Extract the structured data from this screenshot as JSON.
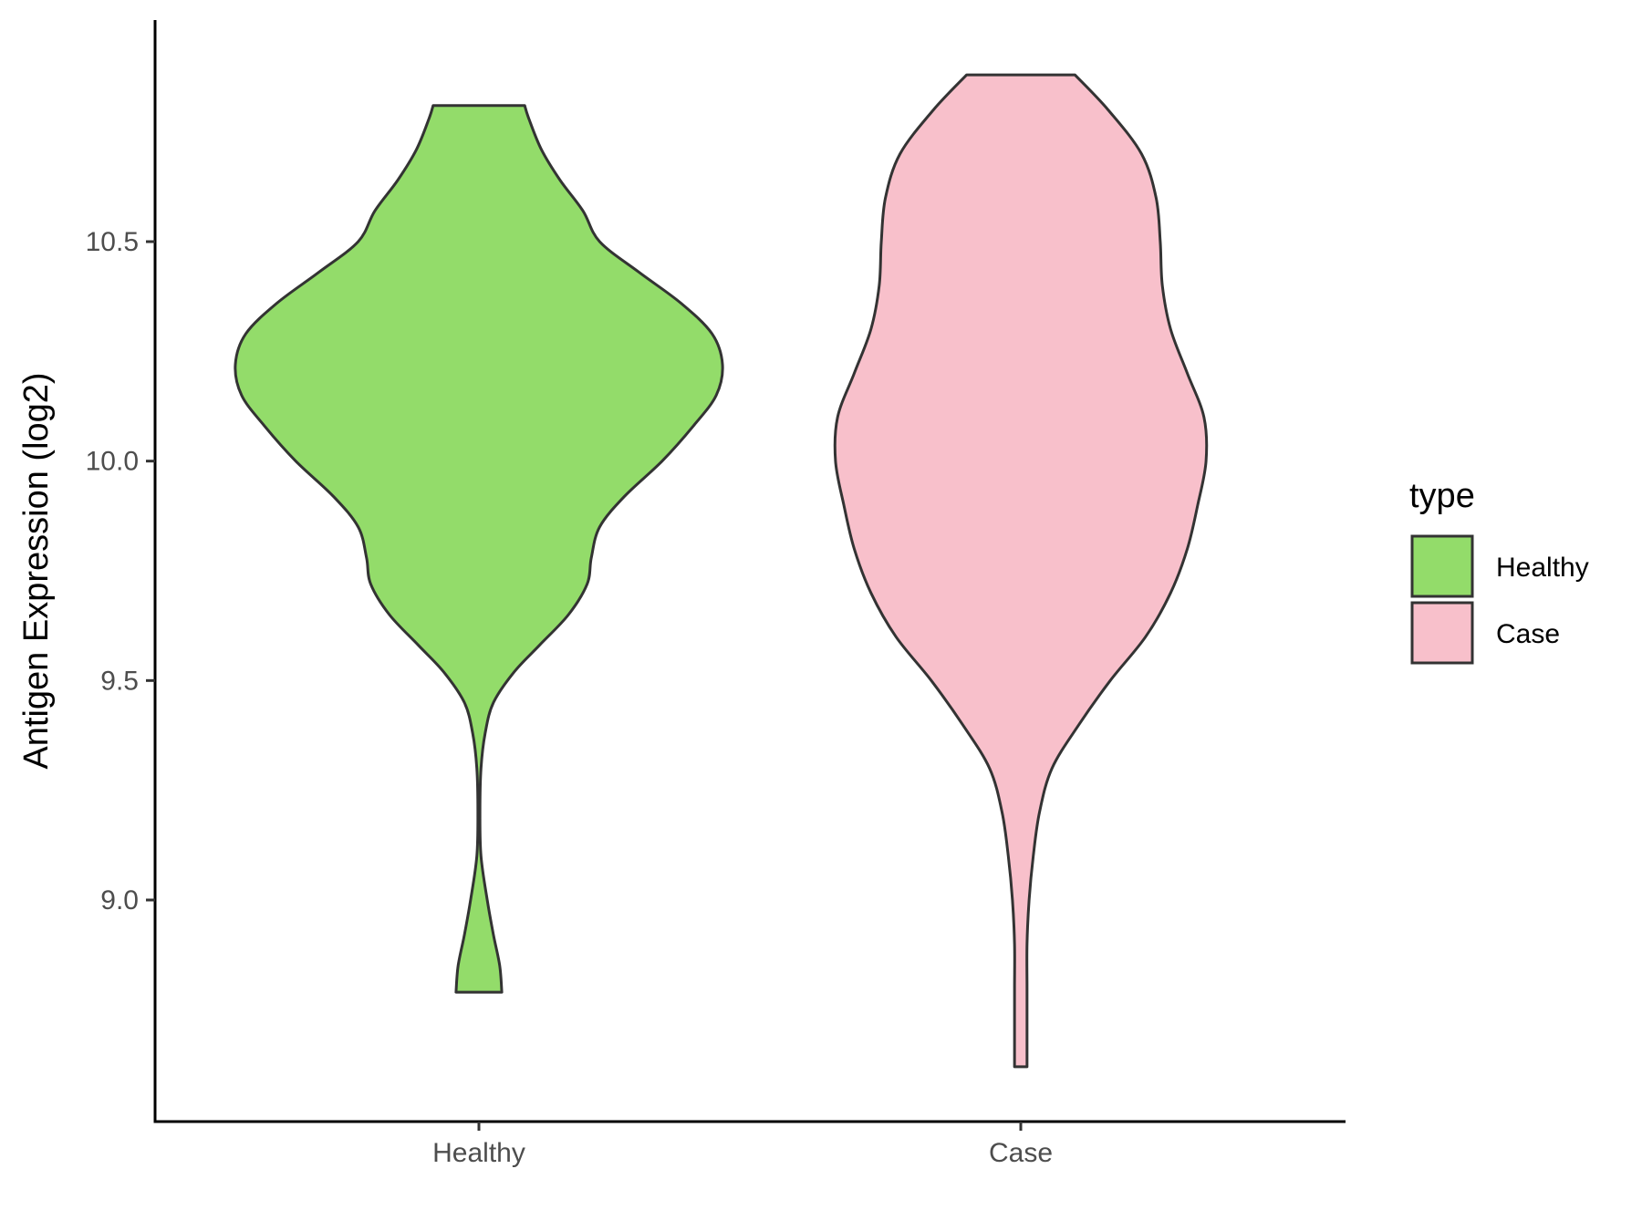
{
  "chart_data": {
    "type": "violin",
    "title": "",
    "xlabel": "",
    "ylabel": "Antigen Expression (log2)",
    "ylim": [
      8.5,
      11.05
    ],
    "yticks": [
      9.0,
      9.5,
      10.0,
      10.5
    ],
    "ytick_labels": [
      "9.0",
      "9.5",
      "10.0",
      "10.5"
    ],
    "categories": [
      "Healthy",
      "Case"
    ],
    "legend": {
      "title": "type",
      "position": "right",
      "entries": [
        {
          "label": "Healthy",
          "color": "#93dc6a"
        },
        {
          "label": "Case",
          "color": "#f8c0cb"
        }
      ]
    },
    "series": [
      {
        "category": "Healthy",
        "color": "#93dc6a",
        "min": 8.79,
        "max": 10.81,
        "density": [
          [
            8.79,
            0.11
          ],
          [
            8.85,
            0.1
          ],
          [
            8.92,
            0.07
          ],
          [
            9.0,
            0.04
          ],
          [
            9.1,
            0.01
          ],
          [
            9.2,
            0.005
          ],
          [
            9.3,
            0.01
          ],
          [
            9.38,
            0.03
          ],
          [
            9.45,
            0.07
          ],
          [
            9.52,
            0.17
          ],
          [
            9.58,
            0.29
          ],
          [
            9.65,
            0.43
          ],
          [
            9.72,
            0.52
          ],
          [
            9.78,
            0.54
          ],
          [
            9.85,
            0.58
          ],
          [
            9.92,
            0.7
          ],
          [
            10.0,
            0.88
          ],
          [
            10.08,
            1.03
          ],
          [
            10.15,
            1.14
          ],
          [
            10.22,
            1.17
          ],
          [
            10.29,
            1.12
          ],
          [
            10.36,
            0.97
          ],
          [
            10.43,
            0.77
          ],
          [
            10.5,
            0.58
          ],
          [
            10.57,
            0.5
          ],
          [
            10.64,
            0.39
          ],
          [
            10.71,
            0.3
          ],
          [
            10.78,
            0.24
          ],
          [
            10.81,
            0.22
          ]
        ]
      },
      {
        "category": "Case",
        "color": "#f8c0cb",
        "min": 8.62,
        "max": 10.88,
        "density": [
          [
            8.62,
            0.03
          ],
          [
            8.7,
            0.03
          ],
          [
            8.8,
            0.03
          ],
          [
            8.9,
            0.03
          ],
          [
            9.0,
            0.04
          ],
          [
            9.1,
            0.06
          ],
          [
            9.2,
            0.09
          ],
          [
            9.3,
            0.15
          ],
          [
            9.4,
            0.28
          ],
          [
            9.5,
            0.43
          ],
          [
            9.6,
            0.6
          ],
          [
            9.7,
            0.72
          ],
          [
            9.8,
            0.8
          ],
          [
            9.9,
            0.85
          ],
          [
            10.0,
            0.89
          ],
          [
            10.1,
            0.88
          ],
          [
            10.2,
            0.8
          ],
          [
            10.3,
            0.72
          ],
          [
            10.4,
            0.68
          ],
          [
            10.5,
            0.67
          ],
          [
            10.6,
            0.65
          ],
          [
            10.7,
            0.58
          ],
          [
            10.8,
            0.42
          ],
          [
            10.88,
            0.26
          ]
        ]
      }
    ]
  }
}
